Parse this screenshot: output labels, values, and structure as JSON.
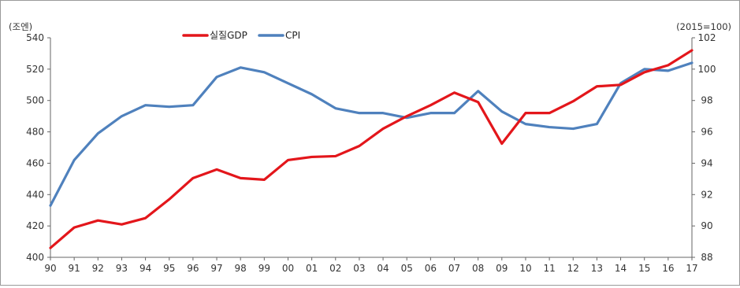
{
  "chart_data": {
    "type": "line",
    "title": "",
    "categories": [
      "90",
      "91",
      "92",
      "93",
      "94",
      "95",
      "96",
      "97",
      "98",
      "99",
      "00",
      "01",
      "02",
      "03",
      "04",
      "05",
      "06",
      "07",
      "08",
      "09",
      "10",
      "11",
      "12",
      "13",
      "14",
      "15",
      "16",
      "17"
    ],
    "left_axis": {
      "unit_label": "(조엔)",
      "range": [
        400,
        540
      ],
      "ticks": [
        "400",
        "420",
        "440",
        "460",
        "480",
        "500",
        "520",
        "540"
      ]
    },
    "right_axis": {
      "unit_label": "(2015=100)",
      "range": [
        88,
        102
      ],
      "ticks": [
        "88",
        "90",
        "92",
        "94",
        "96",
        "98",
        "100",
        "102"
      ]
    },
    "grid": false,
    "legend_position": "top-left",
    "series": [
      {
        "name": "실질GDP",
        "axis": "left",
        "color": "#e3161b",
        "values": [
          406,
          419,
          423.5,
          421,
          425,
          437,
          450.5,
          456,
          450.5,
          449.5,
          462,
          464,
          464.5,
          471,
          482,
          490,
          497,
          505,
          499,
          472.5,
          492,
          492,
          499.5,
          509,
          510,
          518,
          522.5,
          532
        ]
      },
      {
        "name": "CPI",
        "axis": "right",
        "color": "#4f81bd",
        "values": [
          91.3,
          94.2,
          95.9,
          97.0,
          97.7,
          97.6,
          97.7,
          99.5,
          100.1,
          99.8,
          99.1,
          98.4,
          97.5,
          97.2,
          97.2,
          96.9,
          97.2,
          97.2,
          98.6,
          97.3,
          96.5,
          96.3,
          96.2,
          96.5,
          99.1,
          100.0,
          99.9,
          100.4
        ]
      }
    ]
  }
}
